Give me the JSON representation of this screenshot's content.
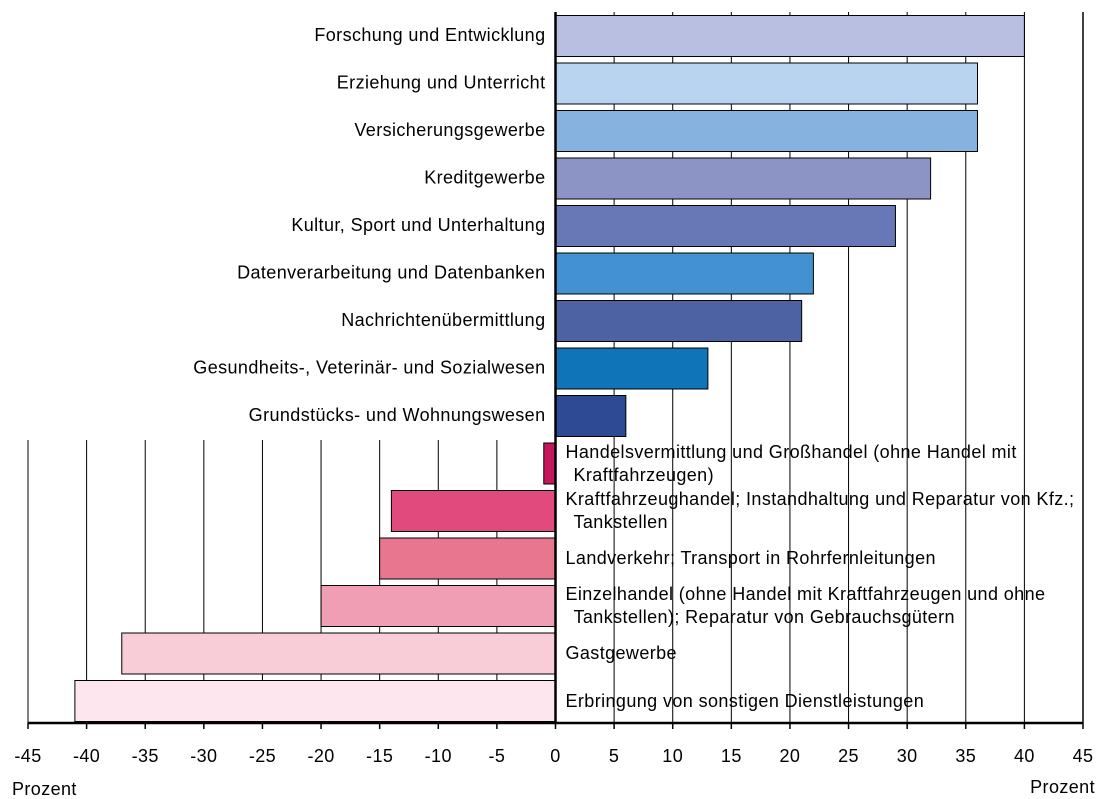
{
  "chart_data": {
    "type": "barh",
    "categories": [
      "Forschung und Entwicklung",
      "Erziehung und Unterricht",
      "Versicherungsgewerbe",
      "Kreditgewerbe",
      "Kultur, Sport und Unterhaltung",
      "Datenverarbeitung und Datenbanken",
      "Nachrichtenübermittlung",
      "Gesundheits-, Veterinär- und Sozialwesen",
      "Grundstücks- und Wohnungswesen",
      "Handelsvermittlung und Großhandel (ohne Handel mit Kraftfahrzeugen)",
      "Kraftfahrzeughandel; Instandhaltung und Reparatur von Kfz.; Tankstellen",
      "Landverkehr; Transport in Rohrfernleitungen",
      "Einzelhandel (ohne Handel mit Kraftfahrzeugen und ohne Tankstellen); Reparatur von Gebrauchsgütern",
      "Gastgewerbe",
      "Erbringung von sonstigen Dienstleistungen"
    ],
    "values": [
      40,
      36,
      36,
      32,
      29,
      22,
      21,
      13,
      6,
      -1,
      -14,
      -15,
      -20,
      -37,
      -41
    ],
    "colors": [
      "#b9bfe0",
      "#b8d4f0",
      "#85b2df",
      "#8c93c5",
      "#6878b6",
      "#4391d0",
      "#4d62a3",
      "#1075b8",
      "#2e4a94",
      "#c4185b",
      "#e14a7d",
      "#e8768f",
      "#f09eb3",
      "#f8cdd8",
      "#fde6ee"
    ],
    "xlabel": "Prozent",
    "xlim": [
      -45,
      45
    ],
    "xticks": [
      -45,
      -40,
      -35,
      -30,
      -25,
      -20,
      -15,
      -10,
      -5,
      0,
      5,
      10,
      15,
      20,
      25,
      30,
      35,
      40,
      45
    ],
    "grid": true
  }
}
